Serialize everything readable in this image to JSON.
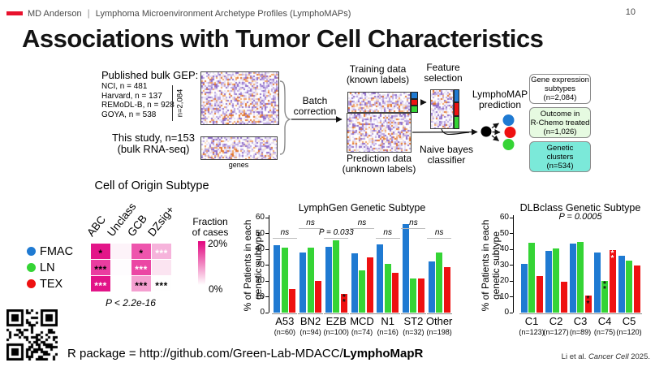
{
  "header": {
    "brand": "MD Anderson",
    "subtitle": "Lymphoma Microenvironment Archetype Profiles (LymphoMAPs)",
    "page_number": "10"
  },
  "title": "Associations with Tumor Cell Characteristics",
  "workflow": {
    "published": {
      "heading": "Published bulk GEP:",
      "sources": [
        "NCI, n = 481",
        "Harvard, n = 137",
        "REMoDL-B, n = 928",
        "GOYA, n = 538"
      ],
      "total": "n=2,084"
    },
    "study_line1": "This study, n=153",
    "study_line2": "(bulk RNA-seq)",
    "genes_label": "genes",
    "batch_line1": "Batch",
    "batch_line2": "correction",
    "training_line1": "Training data",
    "training_line2": "(known labels)",
    "prediction_line1": "Prediction data",
    "prediction_line2": "(unknown labels)",
    "feature_line1": "Feature",
    "feature_line2": "selection",
    "naive_line1": "Naive bayes",
    "naive_line2": "classifier",
    "lymphomap_line1": "LymphoMAP",
    "lymphomap_line2": "prediction",
    "class_colors": [
      "#1f7ad2",
      "#ee1111",
      "#35d435"
    ],
    "outputs": [
      {
        "lines": [
          "Gene expression",
          "subtypes",
          "(n=2,084)"
        ],
        "bg": "#ffffff"
      },
      {
        "lines": [
          "Outcome in",
          "R-Chemo treated",
          "(n=1,026)"
        ],
        "bg": "#e6fae1"
      },
      {
        "lines": [
          "Genetic",
          "clusters",
          "(n=534)"
        ],
        "bg": "#7be9d9"
      }
    ]
  },
  "coo": {
    "title": "Cell of Origin Subtype",
    "columns": [
      "ABC",
      "Unclass",
      "GCB",
      "DZsig+"
    ],
    "rows": [
      {
        "label": "FMAC",
        "dot": "#1f7ad2",
        "cells": [
          {
            "bg": "#e31689",
            "stars": "*",
            "star_color": "#000000"
          },
          {
            "bg": "#fdf3f9",
            "stars": "",
            "star_color": ""
          },
          {
            "bg": "#ee55ad",
            "stars": "*",
            "star_color": "#000000"
          },
          {
            "bg": "#f6b3db",
            "stars": "***",
            "star_color": "#ffffff"
          }
        ]
      },
      {
        "label": "LN",
        "dot": "#35d435",
        "cells": [
          {
            "bg": "#ea3da0",
            "stars": "***",
            "star_color": "#000000"
          },
          {
            "bg": "#fefcfe",
            "stars": "",
            "star_color": ""
          },
          {
            "bg": "#eb46a4",
            "stars": "***",
            "star_color": "#ffffff"
          },
          {
            "bg": "#fbe4f1",
            "stars": "",
            "star_color": ""
          }
        ]
      },
      {
        "label": "TEX",
        "dot": "#ee1111",
        "cells": [
          {
            "bg": "#e21488",
            "stars": "***",
            "star_color": "#ffffff"
          },
          {
            "bg": "#ffffff",
            "stars": "",
            "star_color": ""
          },
          {
            "bg": "#f49fd0",
            "stars": "***",
            "star_color": "#000000"
          },
          {
            "bg": "#fefefe",
            "stars": "***",
            "star_color": "#000000"
          }
        ]
      }
    ],
    "p_value": "P < 2.2e-16",
    "scale": {
      "line1": "Fraction",
      "line2": "of cases",
      "max": "20%",
      "min": "0%",
      "top_color": "#e2047f"
    }
  },
  "chart_data": [
    {
      "type": "bar",
      "title": "LymphGen Genetic Subtype",
      "ylabel": "% of Patients in each genetic subtype",
      "ylabel_lines": [
        "% of Patients in each",
        "genetic subtype"
      ],
      "ylim": [
        0,
        60
      ],
      "yticks": [
        0,
        10,
        20,
        30,
        40,
        50,
        60
      ],
      "categories": [
        "A53",
        "BN2",
        "EZB",
        "MCD",
        "N1",
        "ST2",
        "Other"
      ],
      "counts": [
        "(n=60)",
        "(n=94)",
        "(n=100)",
        "(n=74)",
        "(n=16)",
        "(n=32)",
        "(n=198)"
      ],
      "series": [
        {
          "name": "FMAC",
          "color": "#1f7ad2",
          "values": [
            42.5,
            38,
            41.5,
            37.5,
            43,
            56,
            32.5
          ]
        },
        {
          "name": "LN",
          "color": "#35d435",
          "values": [
            41,
            41,
            45.5,
            26.5,
            31,
            21.5,
            38
          ]
        },
        {
          "name": "TEX",
          "color": "#ee1111",
          "values": [
            15,
            20,
            12,
            35,
            25,
            21.5,
            28.5
          ],
          "stars": [
            "",
            "",
            "**",
            "",
            "",
            "",
            ""
          ],
          "star_colors": [
            "",
            "",
            "#111111",
            "",
            "",
            "",
            ""
          ]
        }
      ],
      "sig": [
        {
          "text": "ns",
          "row": "low"
        },
        {
          "text": "ns",
          "row": "high"
        },
        {
          "text": "P = 0.033",
          "row": "low"
        },
        {
          "text": "ns",
          "row": "high"
        },
        {
          "text": "ns",
          "row": "low"
        },
        {
          "text": "ns",
          "row": "high"
        },
        {
          "text": "ns",
          "row": "low"
        }
      ]
    },
    {
      "type": "bar",
      "title": "DLBclass Genetic Subtype",
      "subtitle": "P = 0.0005",
      "ylabel": "% of Patients in each genetic subtype",
      "ylabel_lines": [
        "% of Patients in each",
        "genetic subtype"
      ],
      "ylim": [
        0,
        60
      ],
      "yticks": [
        0,
        10,
        20,
        30,
        40,
        50,
        60
      ],
      "categories": [
        "C1",
        "C2",
        "C3",
        "C4",
        "C5"
      ],
      "counts": [
        "(n=123)",
        "(n=127)",
        "(n=89)",
        "(n=75)",
        "(n=120)"
      ],
      "series": [
        {
          "name": "FMAC",
          "color": "#1f7ad2",
          "values": [
            31,
            39,
            43.5,
            38,
            36
          ]
        },
        {
          "name": "LN",
          "color": "#35d435",
          "values": [
            44,
            40.5,
            44.5,
            20,
            33
          ],
          "stars": [
            "",
            "",
            "",
            "**",
            ""
          ],
          "star_colors": [
            "",
            "",
            "",
            "#111111",
            ""
          ]
        },
        {
          "name": "TEX",
          "color": "#ee1111",
          "values": [
            23,
            19.5,
            11,
            39.5,
            29.5
          ],
          "stars": [
            "",
            "",
            "**",
            "**",
            ""
          ],
          "star_colors": [
            "",
            "",
            "#111111",
            "#ffffff",
            ""
          ]
        }
      ]
    }
  ],
  "footer": {
    "r_package_prefix": "R package = http://github.com/Green-Lab-MDACC/",
    "r_package_bold": "LymphoMapR",
    "citation_prefix": "Li et al. ",
    "citation_italic": "Cancer Cell",
    "citation_suffix": " 2025."
  }
}
